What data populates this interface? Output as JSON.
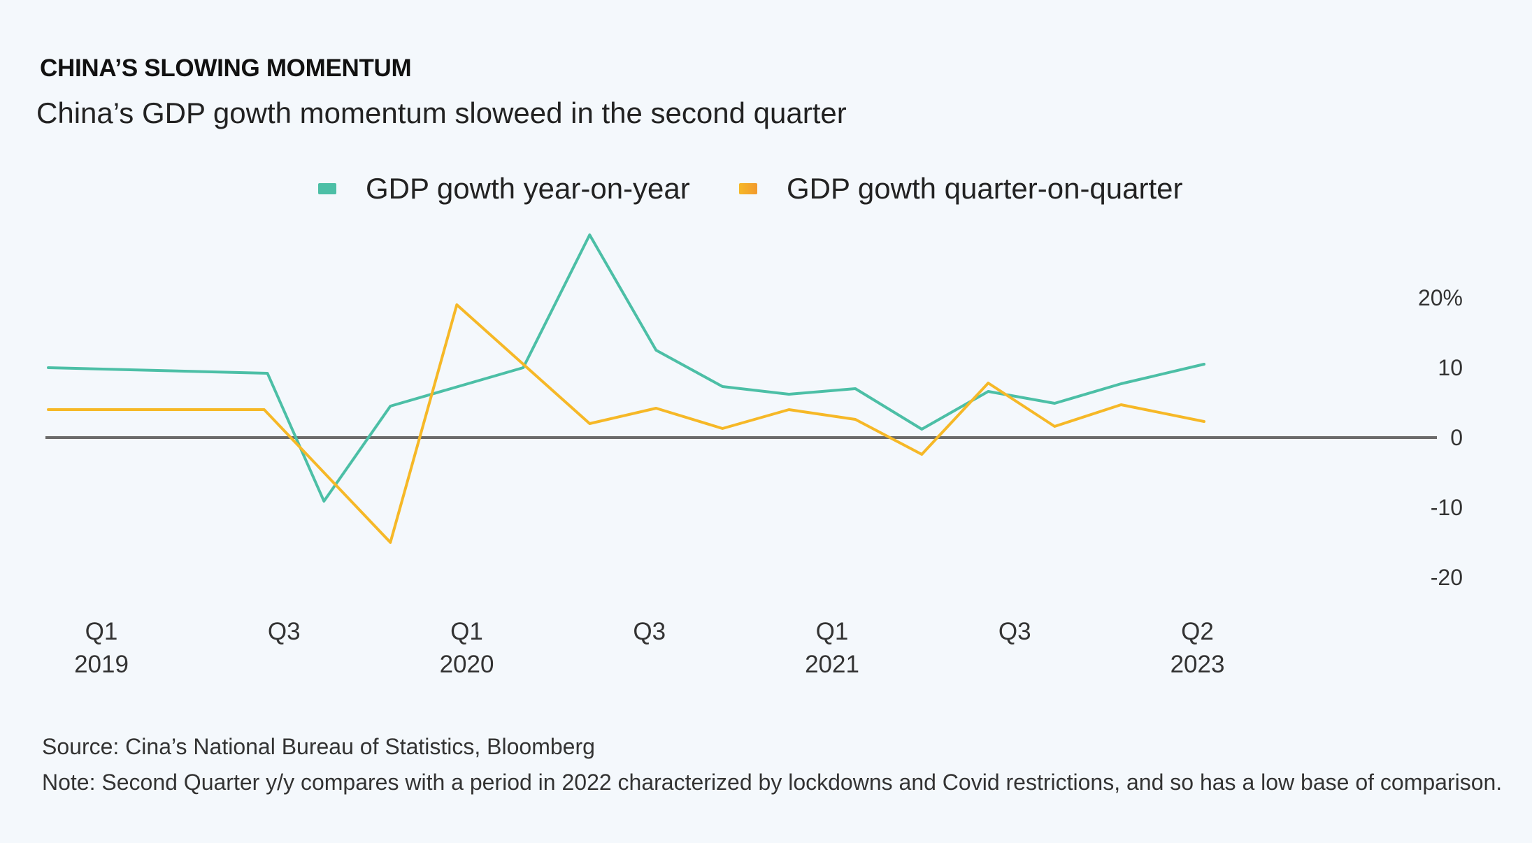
{
  "header": {
    "title": "CHINA’S SLOWING MOMENTUM",
    "subtitle": "China’s GDP gowth momentum sloweed in the second quarter"
  },
  "legend": {
    "items": [
      {
        "label": "GDP gowth year-on-year",
        "color": "#4cbfa6"
      },
      {
        "label": "GDP gowth quarter-on-quarter",
        "color": "#f6b827"
      }
    ]
  },
  "footer": {
    "source": "Source: Cina’s National Bureau of Statistics, Bloomberg",
    "note": "Note: Second Quarter y/y compares with a period in 2022 characterized by lockdowns and Covid restrictions, and so has a low base of comparison."
  },
  "chart_data": {
    "type": "line",
    "title": "CHINA’S SLOWING MOMENTUM",
    "subtitle": "China’s GDP gowth momentum sloweed in the second quarter",
    "xlabel": "",
    "ylabel": "",
    "ylim": [
      -20,
      20
    ],
    "y_ticks": [
      "20%",
      "10",
      "0",
      "-10",
      "-20"
    ],
    "y_tick_values": [
      20,
      10,
      0,
      -10,
      -20
    ],
    "y_axis_position": "right",
    "zero_line": true,
    "grid": false,
    "legend_position": "top-center",
    "x_tick_labels": [
      {
        "x": 0,
        "line1": "Q1",
        "line2": "2019"
      },
      {
        "x": 2.75,
        "line1": "Q3",
        "line2": ""
      },
      {
        "x": 5.5,
        "line1": "Q1",
        "line2": "2020"
      },
      {
        "x": 8.25,
        "line1": "Q3",
        "line2": ""
      },
      {
        "x": 11,
        "line1": "Q1",
        "line2": "2021"
      },
      {
        "x": 13.75,
        "line1": "Q3",
        "line2": ""
      },
      {
        "x": 16.5,
        "line1": "Q2",
        "line2": "2023"
      }
    ],
    "series": [
      {
        "name": "GDP gowth year-on-year",
        "color": "#4cbfa6",
        "x": [
          -0.8,
          2.5,
          3.35,
          4.35,
          6.35,
          7.35,
          8.35,
          9.35,
          10.35,
          11.35,
          12.35,
          13.35,
          14.35,
          15.35,
          16.6
        ],
        "values": [
          10.0,
          9.2,
          -9.1,
          4.5,
          10.0,
          29.0,
          12.5,
          7.3,
          6.2,
          7.0,
          1.2,
          6.6,
          4.9,
          7.7,
          10.5
        ]
      },
      {
        "name": "GDP gowth quarter-on-quarter",
        "color": "#f6b827",
        "x": [
          -0.8,
          2.45,
          4.35,
          5.35,
          7.35,
          8.35,
          9.35,
          10.35,
          11.35,
          12.35,
          13.35,
          14.35,
          15.35,
          16.6
        ],
        "values": [
          4.0,
          4.0,
          -15.0,
          19.0,
          2.0,
          4.2,
          1.3,
          4.0,
          2.6,
          -2.4,
          7.8,
          1.6,
          4.7,
          2.3
        ]
      }
    ]
  }
}
